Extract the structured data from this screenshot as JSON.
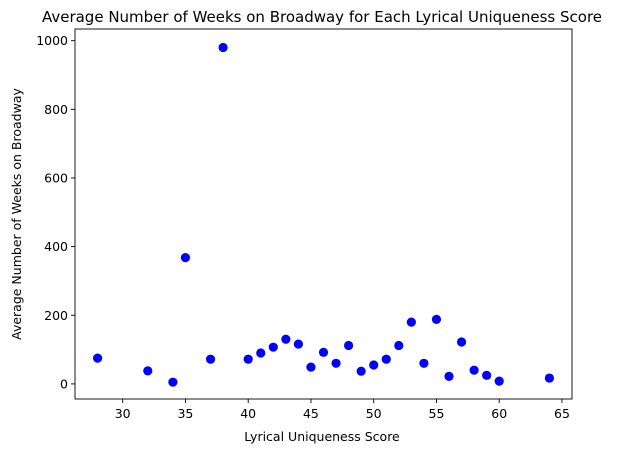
{
  "chart_data": {
    "type": "scatter",
    "title": "Average Number of Weeks on Broadway for Each Lyrical Uniqueness Score",
    "xlabel": "Lyrical Uniqueness Score",
    "ylabel": "Average Number of Weeks on Broadway",
    "xlim": [
      26.2,
      65.8
    ],
    "ylim": [
      -44,
      1034
    ],
    "xticks": [
      30,
      35,
      40,
      45,
      50,
      55,
      60,
      65
    ],
    "yticks": [
      0,
      200,
      400,
      600,
      800,
      1000
    ],
    "grid": false,
    "marker_color": "#0000ff",
    "points": [
      {
        "x": 28,
        "y": 75
      },
      {
        "x": 32,
        "y": 38
      },
      {
        "x": 34,
        "y": 5
      },
      {
        "x": 35,
        "y": 368
      },
      {
        "x": 37,
        "y": 72
      },
      {
        "x": 38,
        "y": 980
      },
      {
        "x": 40,
        "y": 72
      },
      {
        "x": 41,
        "y": 90
      },
      {
        "x": 42,
        "y": 107
      },
      {
        "x": 43,
        "y": 130
      },
      {
        "x": 44,
        "y": 116
      },
      {
        "x": 45,
        "y": 49
      },
      {
        "x": 46,
        "y": 92
      },
      {
        "x": 47,
        "y": 60
      },
      {
        "x": 48,
        "y": 112
      },
      {
        "x": 49,
        "y": 37
      },
      {
        "x": 50,
        "y": 55
      },
      {
        "x": 51,
        "y": 72
      },
      {
        "x": 52,
        "y": 112
      },
      {
        "x": 53,
        "y": 180
      },
      {
        "x": 54,
        "y": 60
      },
      {
        "x": 55,
        "y": 188
      },
      {
        "x": 56,
        "y": 22
      },
      {
        "x": 57,
        "y": 122
      },
      {
        "x": 58,
        "y": 40
      },
      {
        "x": 59,
        "y": 25
      },
      {
        "x": 60,
        "y": 8
      },
      {
        "x": 64,
        "y": 17
      }
    ]
  }
}
